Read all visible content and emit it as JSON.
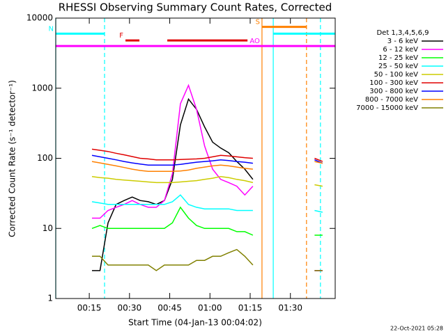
{
  "chart_data": {
    "type": "line",
    "title": "RHESSI Observing Summary Count Rates, Corrected",
    "xlabel": "Start Time (04-Jan-13 00:04:02)",
    "ylabel": "Corrected Count Rate (s⁻¹ detector⁻¹)",
    "legend_title": "Det 1,3,4,5,6,9",
    "footer": "22-Oct-2021 05:28",
    "log_y": true,
    "xlim": [
      2.5,
      106.7
    ],
    "ylim": [
      1,
      10000
    ],
    "xticks": [
      {
        "value": 15,
        "label": "00:15"
      },
      {
        "value": 30,
        "label": "00:30"
      },
      {
        "value": 45,
        "label": "00:45"
      },
      {
        "value": 60,
        "label": "01:00"
      },
      {
        "value": 75,
        "label": "01:15"
      },
      {
        "value": 90,
        "label": "01:30"
      }
    ],
    "yticks": [
      1,
      10,
      100,
      1000,
      10000
    ],
    "x": [
      16,
      19,
      22,
      25,
      28,
      31,
      34,
      37,
      40,
      43,
      46,
      49,
      52,
      55,
      58,
      61,
      64,
      67,
      70,
      73,
      76,
      88,
      99,
      102
    ],
    "series": [
      {
        "name": "3 - 6 keV",
        "color": "#000000",
        "values": [
          2.5,
          2.5,
          12,
          22,
          25,
          28,
          25,
          24,
          22,
          25,
          50,
          300,
          700,
          500,
          280,
          170,
          140,
          120,
          90,
          70,
          50,
          null,
          2.5,
          2.5
        ]
      },
      {
        "name": "6 - 12 keV",
        "color": "#ff00ff",
        "values": [
          14,
          14,
          18,
          20,
          22,
          25,
          22,
          20,
          20,
          25,
          60,
          600,
          1100,
          500,
          150,
          70,
          50,
          45,
          40,
          30,
          40,
          null,
          2.5,
          2.5
        ]
      },
      {
        "name": "12 - 25 keV",
        "color": "#00ff00",
        "values": [
          10,
          11,
          10,
          10,
          10,
          10,
          10,
          10,
          10,
          10,
          12,
          20,
          14,
          11,
          10,
          10,
          10,
          10,
          9,
          9,
          8,
          null,
          8,
          8
        ]
      },
      {
        "name": "25 - 50 keV",
        "color": "#00ffff",
        "values": [
          24,
          23,
          22,
          22,
          22,
          22,
          22,
          22,
          22,
          22,
          24,
          30,
          22,
          20,
          19,
          19,
          19,
          19,
          18,
          18,
          18,
          null,
          18,
          17
        ]
      },
      {
        "name": "50 - 100 keV",
        "color": "#cccc00",
        "values": [
          55,
          53,
          52,
          50,
          49,
          48,
          47,
          46,
          45,
          45,
          45,
          46,
          47,
          48,
          50,
          52,
          55,
          53,
          50,
          48,
          45,
          null,
          42,
          40
        ]
      },
      {
        "name": "100 - 300 keV",
        "color": "#e00000",
        "values": [
          135,
          130,
          125,
          118,
          112,
          106,
          100,
          98,
          95,
          95,
          95,
          96,
          97,
          98,
          100,
          105,
          110,
          108,
          105,
          102,
          100,
          null,
          100,
          90
        ]
      },
      {
        "name": "300 - 800 keV",
        "color": "#0000ff",
        "values": [
          110,
          105,
          100,
          95,
          90,
          86,
          83,
          80,
          80,
          80,
          80,
          82,
          85,
          88,
          90,
          92,
          95,
          93,
          90,
          88,
          85,
          null,
          95,
          85
        ]
      },
      {
        "name": "800 - 7000 keV",
        "color": "#ff8000",
        "values": [
          90,
          86,
          82,
          78,
          74,
          70,
          67,
          65,
          65,
          65,
          65,
          66,
          68,
          72,
          75,
          78,
          80,
          78,
          75,
          72,
          70,
          null,
          90,
          85
        ]
      },
      {
        "name": "7000 - 15000 keV",
        "color": "#808000",
        "values": [
          4,
          4,
          3,
          3,
          3,
          3,
          3,
          3,
          2.5,
          3,
          3,
          3,
          3,
          3.5,
          3.5,
          4,
          4,
          4.5,
          5,
          4,
          3,
          null,
          2.5,
          2.5
        ]
      }
    ],
    "flags": [
      {
        "label": "N",
        "color": "#00ffff",
        "level": 6000,
        "start": 2.5,
        "end": 20.7
      },
      {
        "label": "F",
        "color": "#e00000",
        "level": 4800,
        "start": 28.5,
        "end": 33.7
      },
      {
        "label": "S",
        "color": "#ff8000",
        "level": 7500,
        "start": 79.4,
        "end": 96.0
      },
      {
        "label": "AO",
        "color": "#ff00ff",
        "level": 4000,
        "start": 79.4,
        "end": 106.7
      }
    ],
    "flag_extras": [
      {
        "color": "#e00000",
        "level": 4800,
        "start": 44.1,
        "end": 74.0
      },
      {
        "color": "#00ffff",
        "level": 6000,
        "start": 83.6,
        "end": 106.7
      },
      {
        "color": "#ff00ff",
        "level": 4000,
        "start": 2.5,
        "end": 79.4
      }
    ],
    "vlines": [
      {
        "x": 2.5,
        "color": "#00ffff",
        "dashed": false
      },
      {
        "x": 20.7,
        "color": "#00ffff",
        "dashed": true
      },
      {
        "x": 79.4,
        "color": "#ff8000",
        "dashed": false
      },
      {
        "x": 83.6,
        "color": "#00ffff",
        "dashed": false
      },
      {
        "x": 96.0,
        "color": "#ff8000",
        "dashed": true
      },
      {
        "x": 101.2,
        "color": "#00ffff",
        "dashed": true
      }
    ]
  }
}
